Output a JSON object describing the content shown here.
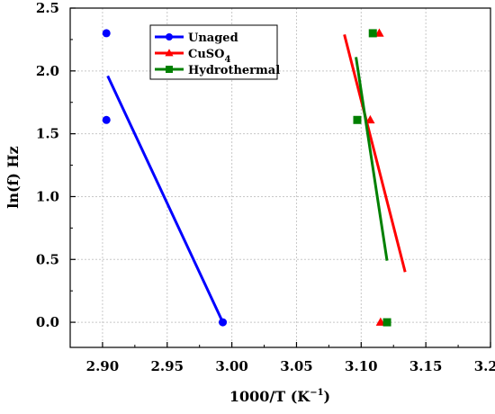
{
  "chart_data": {
    "type": "scatter",
    "xlabel": "1000/T (K",
    "xlabel_sup": "−1",
    "xlabel_close": ")",
    "ylabel": "ln(f) Hz",
    "xlim": [
      2.875,
      3.2
    ],
    "ylim": [
      -0.2,
      2.5
    ],
    "grid": true,
    "legend_position": "top-center",
    "x_ticks": [
      "2.90",
      "2.95",
      "3.00",
      "3.05",
      "3.10",
      "3.15",
      "3.20"
    ],
    "x_tick_values": [
      2.9,
      2.95,
      3.0,
      3.05,
      3.1,
      3.15,
      3.2
    ],
    "y_ticks": [
      "0.0",
      "0.5",
      "1.0",
      "1.5",
      "2.0",
      "2.5"
    ],
    "y_tick_values": [
      0.0,
      0.5,
      1.0,
      1.5,
      2.0,
      2.5
    ],
    "series": [
      {
        "name": "Unaged",
        "name_sub": "",
        "color": "#0000ff",
        "marker": "circle",
        "points": [
          [
            2.903,
            2.3
          ],
          [
            2.903,
            1.61
          ],
          [
            2.993,
            0.0
          ]
        ],
        "fit": [
          [
            2.904,
            1.96
          ],
          [
            2.993,
            0.0
          ]
        ]
      },
      {
        "name": "CuSO",
        "name_sub": "4",
        "color": "#ff0000",
        "marker": "triangle",
        "points": [
          [
            3.114,
            2.3
          ],
          [
            3.107,
            1.61
          ],
          [
            3.115,
            0.0
          ]
        ],
        "fit": [
          [
            3.087,
            2.29
          ],
          [
            3.134,
            0.4
          ]
        ]
      },
      {
        "name": "Hydrothermal",
        "name_sub": "",
        "color": "#008000",
        "marker": "square",
        "points": [
          [
            3.109,
            2.3
          ],
          [
            3.097,
            1.61
          ],
          [
            3.12,
            0.0
          ]
        ],
        "fit": [
          [
            3.096,
            2.11
          ],
          [
            3.12,
            0.49
          ]
        ]
      }
    ]
  }
}
